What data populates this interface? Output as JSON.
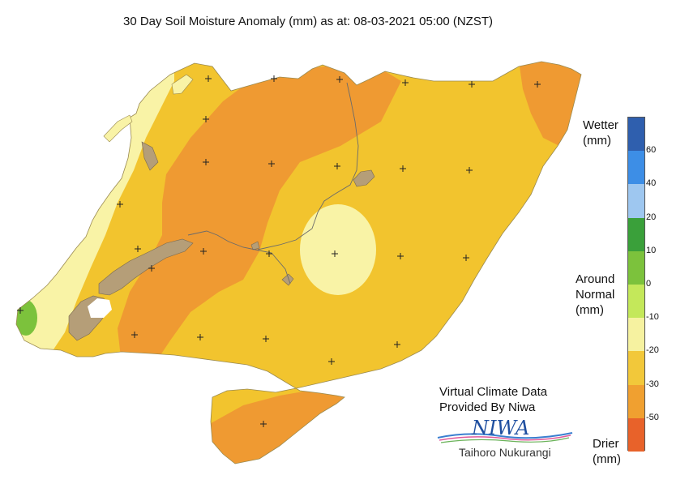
{
  "title": "30 Day Soil Moisture Anomaly (mm) as at: 08-03-2021 05:00 (NZST)",
  "credit": {
    "line1": "Virtual Climate Data",
    "line2": "Provided By Niwa"
  },
  "logo": {
    "wordmark": "NIWA",
    "subtitle": "Taihoro Nukurangi"
  },
  "legend": {
    "top_label": [
      "Wetter",
      "(mm)"
    ],
    "middle_label": [
      "Around",
      "Normal",
      "(mm)"
    ],
    "bottom_label": [
      "Drier",
      "(mm)"
    ],
    "ticks": [
      "60",
      "40",
      "20",
      "10",
      "0",
      "-10",
      "-20",
      "-30",
      "-50"
    ],
    "colors": [
      "#2f5fae",
      "#3d8ee6",
      "#9ec7f0",
      "#3aa03a",
      "#7cc23c",
      "#c4e85a",
      "#f6f2a0",
      "#f2c83a",
      "#f0a030",
      "#e8622a"
    ]
  },
  "map": {
    "colors": {
      "dry": "#f2c42e",
      "drier": "#ef9a32",
      "near_normal": "#f9f3a6",
      "slightly_wet": "#7cc23c",
      "water": "#b59e78"
    },
    "marker": "+"
  }
}
